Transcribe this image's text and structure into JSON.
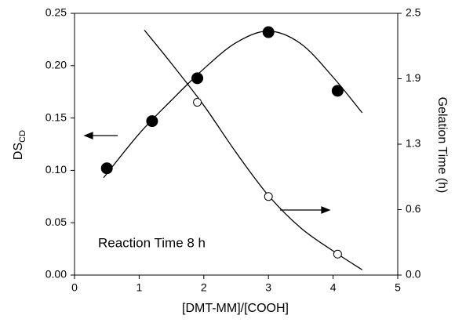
{
  "chart_data": {
    "type": "scatter",
    "xlabel": "[DMT-MM]/[COOH]",
    "ylabel": "DS",
    "ylabel_sub": "CD",
    "y2label": "Gelation Time (h)",
    "annotation": "Reaction Time 8 h",
    "xlim": [
      0,
      5
    ],
    "xticks": [
      0,
      1,
      2,
      3,
      4,
      5
    ],
    "ylim": [
      0,
      0.25
    ],
    "yticks": [
      {
        "value": 0,
        "label": "0.00"
      },
      {
        "value": 0.05,
        "label": "0.05"
      },
      {
        "value": 0.1,
        "label": "0.10"
      },
      {
        "value": 0.15,
        "label": "0.15"
      },
      {
        "value": 0.2,
        "label": "0.20"
      },
      {
        "value": 0.25,
        "label": "0.25"
      }
    ],
    "y2lim": [
      0,
      2.5
    ],
    "y2ticks": [
      {
        "value": 0,
        "label": "0.0"
      },
      {
        "value": 0.625,
        "label": "0.6"
      },
      {
        "value": 1.25,
        "label": "1.3"
      },
      {
        "value": 1.875,
        "label": "1.9"
      },
      {
        "value": 2.5,
        "label": "2.5"
      }
    ],
    "series": [
      {
        "marker": "filled",
        "color": "#000000",
        "x": [
          0.5,
          1.2,
          1.9,
          3.0,
          4.07
        ],
        "values": [
          0.102,
          0.147,
          0.188,
          0.232,
          0.176
        ]
      },
      {
        "marker": "open",
        "color": "#000000",
        "axis": "y2",
        "x": [
          1.9,
          3.0,
          4.07
        ],
        "values": [
          1.65,
          0.75,
          0.2
        ]
      },
      {
        "style": "line",
        "color": "#000000",
        "x": [
          0.45,
          1.0,
          1.5,
          2.0,
          2.5,
          3.0,
          3.5,
          4.0,
          4.45
        ],
        "values": [
          0.093,
          0.135,
          0.167,
          0.197,
          0.222,
          0.233,
          0.221,
          0.189,
          0.155
        ]
      },
      {
        "style": "line",
        "color": "#000000",
        "axis": "y2",
        "x": [
          1.08,
          1.5,
          2.0,
          2.5,
          3.0,
          3.5,
          4.0,
          4.45
        ],
        "values": [
          2.34,
          2.02,
          1.62,
          1.17,
          0.76,
          0.45,
          0.23,
          0.05
        ]
      }
    ]
  }
}
